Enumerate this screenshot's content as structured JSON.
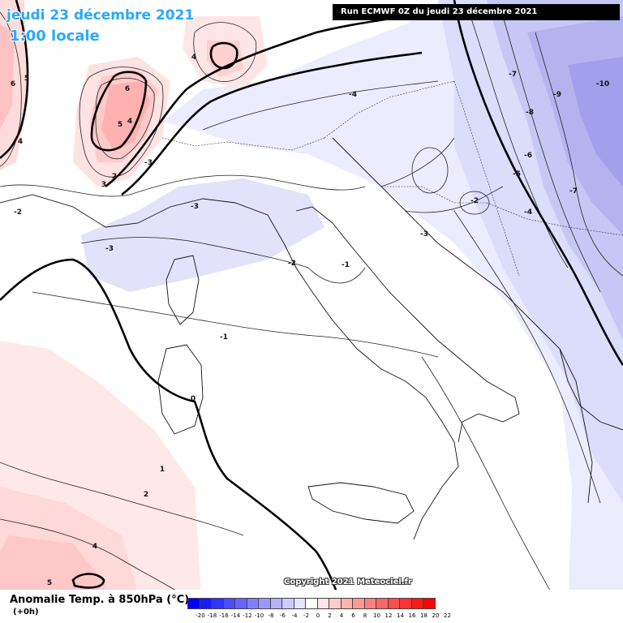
{
  "header": {
    "date": "jeudi 23 décembre 2021",
    "time": "1:00 locale",
    "run": "Run ECMWF 0Z du jeudi 23 décembre 2021"
  },
  "copyright": "Copyright 2021 Meteociel.fr",
  "legend": {
    "title": "Anomalie Temp. à 850hPa (°C)",
    "subtitle": "(+0h)",
    "scale": [
      {
        "value": "-20",
        "color": "#0000ff"
      },
      {
        "value": "-18",
        "color": "#1a1aff"
      },
      {
        "value": "-16",
        "color": "#3333ff"
      },
      {
        "value": "-14",
        "color": "#4d4dff"
      },
      {
        "value": "-12",
        "color": "#6666ff"
      },
      {
        "value": "-10",
        "color": "#8080ff"
      },
      {
        "value": "-8",
        "color": "#9999ff"
      },
      {
        "value": "-6",
        "color": "#b3b3ff"
      },
      {
        "value": "-4",
        "color": "#ccccff"
      },
      {
        "value": "-2",
        "color": "#e6e6ff"
      },
      {
        "value": "0",
        "color": "#ffffff"
      },
      {
        "value": "2",
        "color": "#ffe6e6"
      },
      {
        "value": "4",
        "color": "#ffcccc"
      },
      {
        "value": "6",
        "color": "#ffb3b3"
      },
      {
        "value": "8",
        "color": "#ff9999"
      },
      {
        "value": "10",
        "color": "#ff8080"
      },
      {
        "value": "12",
        "color": "#ff6666"
      },
      {
        "value": "14",
        "color": "#ff4d4d"
      },
      {
        "value": "16",
        "color": "#ff3333"
      },
      {
        "value": "18",
        "color": "#ff1a1a"
      },
      {
        "value": "20",
        "color": "#ff0000"
      },
      {
        "value": "22",
        "color": ""
      }
    ]
  },
  "contour_labels": {
    "w6": "6",
    "w5": "5",
    "w4": "4",
    "alp6": "6",
    "alp5": "5",
    "alp4": "4",
    "alp2": "2",
    "alp3": "3",
    "at4": "4",
    "fr_m2": "-2",
    "fr_m3a": "-3",
    "fr_m3b": "-3",
    "med_m3": "-3",
    "it_m4": "-4",
    "it_m1": "-1",
    "it_m2": "-2",
    "bal_m3": "-3",
    "bal_m2": "-2",
    "e_m7a": "-7",
    "e_m10": "-10",
    "e_m9": "-9",
    "e_m8": "-8",
    "e_m6": "-6",
    "e_m5": "-5",
    "e_m7b": "-7",
    "e_m4": "-4",
    "sea_m1": "-1",
    "sard_0": "0",
    "sw_1": "1",
    "sw_2": "2",
    "sw_4": "4",
    "sw_5": "5"
  }
}
